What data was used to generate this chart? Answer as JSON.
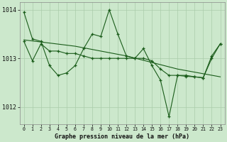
{
  "title": "Graphe pression niveau de la mer (hPa)",
  "bg_color": "#cce8cc",
  "plot_bg_color": "#cce8cc",
  "grid_color": "#aaccaa",
  "line_color": "#1a5c1a",
  "ylim": [
    1011.65,
    1014.15
  ],
  "yticks": [
    1012,
    1013,
    1014
  ],
  "xlim": [
    -0.5,
    23.5
  ],
  "xticks": [
    0,
    1,
    2,
    3,
    4,
    5,
    6,
    7,
    8,
    9,
    10,
    11,
    12,
    13,
    14,
    15,
    16,
    17,
    18,
    19,
    20,
    21,
    22,
    23
  ],
  "series0": [
    1013.95,
    1013.4,
    1013.35,
    1012.85,
    1012.65,
    1012.7,
    1012.85,
    1013.2,
    1013.5,
    1013.45,
    1014.0,
    1013.5,
    1013.05,
    1013.0,
    1013.2,
    1012.85,
    1012.55,
    1011.8,
    1012.65,
    1012.65,
    1012.62,
    1012.6,
    1013.05,
    1013.3
  ],
  "series1_x": [
    0,
    6,
    12,
    18,
    23
  ],
  "series1_y": [
    1013.38,
    1013.25,
    1013.05,
    1012.78,
    1012.62
  ],
  "series2": [
    1013.35,
    1012.95,
    1013.3,
    1013.15,
    1013.15,
    1013.1,
    1013.1,
    1013.05,
    1013.0,
    1013.0,
    1013.0,
    1013.0,
    1013.0,
    1013.0,
    1013.0,
    1012.95,
    1012.78,
    1012.65,
    1012.65,
    1012.63,
    1012.62,
    1012.6,
    1013.0,
    1013.3
  ],
  "figsize": [
    3.2,
    2.0
  ],
  "dpi": 100
}
